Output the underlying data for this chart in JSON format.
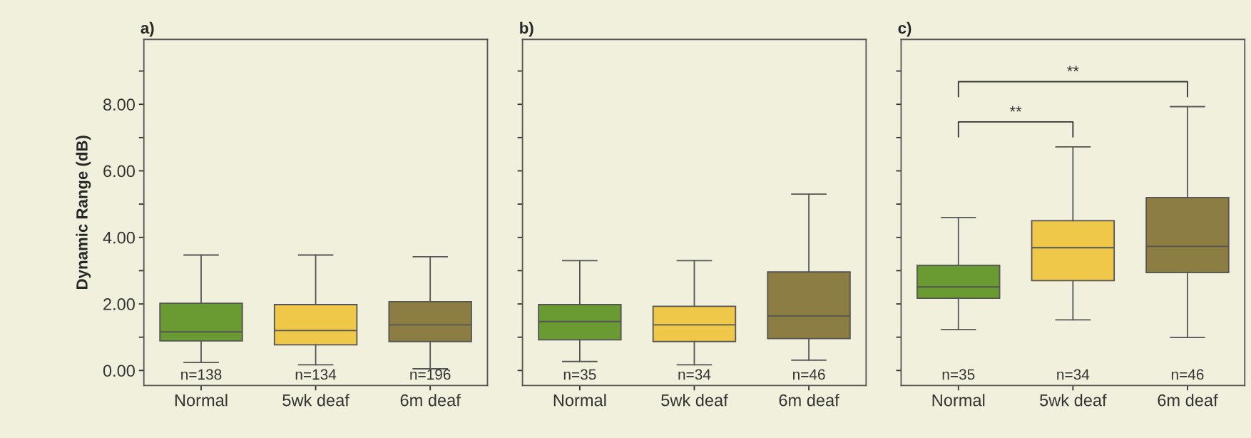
{
  "chart_data": [
    {
      "type": "box",
      "title": "a)",
      "ylabel": "Dynamic Range (dB)",
      "categories": [
        "Normal",
        "5wk deaf",
        "6m deaf"
      ],
      "colors": [
        "#6a9a32",
        "#efc84a",
        "#8c7d42"
      ],
      "boxes": [
        {
          "low": 0.24,
          "q1": 0.89,
          "median": 1.16,
          "q3": 2.02,
          "high": 3.47
        },
        {
          "low": 0.17,
          "q1": 0.77,
          "median": 1.2,
          "q3": 1.98,
          "high": 3.47
        },
        {
          "low": 0.05,
          "q1": 0.87,
          "median": 1.37,
          "q3": 2.07,
          "high": 3.42
        }
      ],
      "ylim": [
        -0.45,
        9.95
      ],
      "yticks": [
        {
          "value": 0,
          "label": "0.00"
        },
        {
          "value": 2,
          "label": "2.00"
        },
        {
          "value": 4,
          "label": "4.00"
        },
        {
          "value": 6,
          "label": "6.00"
        },
        {
          "value": 8,
          "label": "8.00"
        },
        {
          "value": 1,
          "label": null
        },
        {
          "value": 3,
          "label": null
        },
        {
          "value": 5,
          "label": null
        },
        {
          "value": 7,
          "label": null
        },
        {
          "value": 9,
          "label": null
        }
      ],
      "annotations": [
        "n=138",
        "n=134",
        "n=196"
      ]
    },
    {
      "type": "box",
      "title": "b)",
      "categories": [
        "Normal",
        "5wk deaf",
        "6m deaf"
      ],
      "tick_labels": "x",
      "colors": [
        "#6a9a32",
        "#efc84a",
        "#8c7d42"
      ],
      "boxes": [
        {
          "low": 0.27,
          "q1": 0.92,
          "median": 1.47,
          "q3": 1.98,
          "high": 3.3
        },
        {
          "low": 0.17,
          "q1": 0.87,
          "median": 1.37,
          "q3": 1.93,
          "high": 3.3
        },
        {
          "low": 0.31,
          "q1": 0.96,
          "median": 1.64,
          "q3": 2.96,
          "high": 5.3
        }
      ],
      "ylim": [
        -0.45,
        9.95
      ],
      "yticks": [
        {
          "value": 0,
          "label": null
        },
        {
          "value": 2,
          "label": null
        },
        {
          "value": 4,
          "label": null
        },
        {
          "value": 6,
          "label": null
        },
        {
          "value": 8,
          "label": null
        },
        {
          "value": 1,
          "label": null
        },
        {
          "value": 3,
          "label": null
        },
        {
          "value": 5,
          "label": null
        },
        {
          "value": 7,
          "label": null
        },
        {
          "value": 9,
          "label": null
        }
      ],
      "annotations": [
        "n=35",
        "n=34",
        "n=46"
      ]
    },
    {
      "type": "box",
      "title": "c)",
      "categories": [
        "Normal",
        "5wk deaf",
        "6m deaf"
      ],
      "tick_labels": "x",
      "colors": [
        "#6a9a32",
        "#efc84a",
        "#8c7d42"
      ],
      "boxes": [
        {
          "low": 1.23,
          "q1": 2.17,
          "median": 2.51,
          "q3": 3.16,
          "high": 4.6
        },
        {
          "low": 1.52,
          "q1": 2.7,
          "median": 3.69,
          "q3": 4.5,
          "high": 6.72
        },
        {
          "low": 0.99,
          "q1": 2.94,
          "median": 3.73,
          "q3": 5.2,
          "high": 7.93
        }
      ],
      "ylim": [
        -0.45,
        9.95
      ],
      "yticks": [
        {
          "value": 0,
          "label": null
        },
        {
          "value": 2,
          "label": null
        },
        {
          "value": 4,
          "label": null
        },
        {
          "value": 6,
          "label": null
        },
        {
          "value": 8,
          "label": null
        },
        {
          "value": 1,
          "label": null
        },
        {
          "value": 3,
          "label": null
        },
        {
          "value": 5,
          "label": null
        },
        {
          "value": 7,
          "label": null
        },
        {
          "value": 9,
          "label": null
        }
      ],
      "annotations": [
        "n=35",
        "n=34",
        "n=46",
        "**",
        "**"
      ]
    }
  ]
}
